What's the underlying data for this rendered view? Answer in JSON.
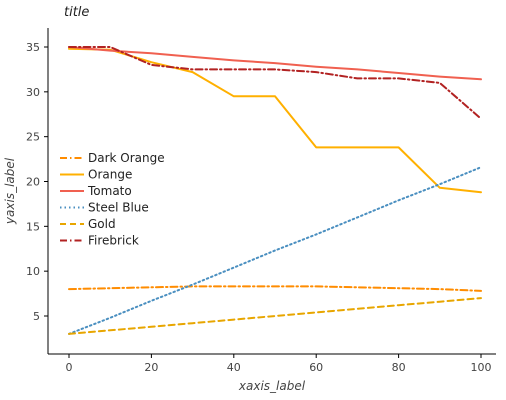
{
  "chart_data": {
    "type": "line",
    "title": "title",
    "xlabel": "xaxis_label",
    "ylabel": "yaxis_label",
    "xlim": [
      0,
      100
    ],
    "ylim": [
      3,
      36
    ],
    "xticks": [
      0,
      20,
      40,
      60,
      80,
      100
    ],
    "yticks": [
      5,
      10,
      15,
      20,
      25,
      30,
      35
    ],
    "xtick_labels": [
      "0",
      "20",
      "40",
      "60",
      "80",
      "100"
    ],
    "ytick_labels": [
      "5",
      "10",
      "15",
      "20",
      "25",
      "30",
      "35"
    ],
    "grid": false,
    "legend_position": "left",
    "x": [
      0,
      10,
      20,
      30,
      40,
      50,
      60,
      70,
      80,
      90,
      100
    ],
    "series": [
      {
        "name": "Dark Orange",
        "color": "#ff8c00",
        "style": "dashdot",
        "values": [
          8.0,
          8.1,
          8.2,
          8.3,
          8.3,
          8.3,
          8.3,
          8.2,
          8.1,
          8.0,
          7.8
        ]
      },
      {
        "name": "Orange",
        "color": "#ffb000",
        "style": "solid",
        "values": [
          34.8,
          34.7,
          33.3,
          32.2,
          29.5,
          29.5,
          23.8,
          23.8,
          23.8,
          19.3,
          18.8
        ]
      },
      {
        "name": "Tomato",
        "color": "#f06050",
        "style": "solid",
        "values": [
          35.0,
          34.6,
          34.3,
          33.9,
          33.5,
          33.2,
          32.8,
          32.5,
          32.1,
          31.7,
          31.4
        ]
      },
      {
        "name": "Steel Blue",
        "color": "#4a8fc0",
        "style": "dotted",
        "values": [
          3.0,
          4.8,
          6.7,
          8.5,
          10.4,
          12.3,
          14.1,
          16.0,
          17.9,
          19.7,
          21.6
        ]
      },
      {
        "name": "Gold",
        "color": "#e8a600",
        "style": "dashed",
        "values": [
          3.0,
          3.4,
          3.8,
          4.2,
          4.6,
          5.0,
          5.4,
          5.8,
          6.2,
          6.6,
          7.0
        ]
      },
      {
        "name": "Firebrick",
        "color": "#b22222",
        "style": "dashdot",
        "values": [
          35.0,
          35.0,
          33.0,
          32.5,
          32.5,
          32.5,
          32.2,
          31.5,
          31.5,
          31.0,
          27.0
        ]
      }
    ]
  }
}
